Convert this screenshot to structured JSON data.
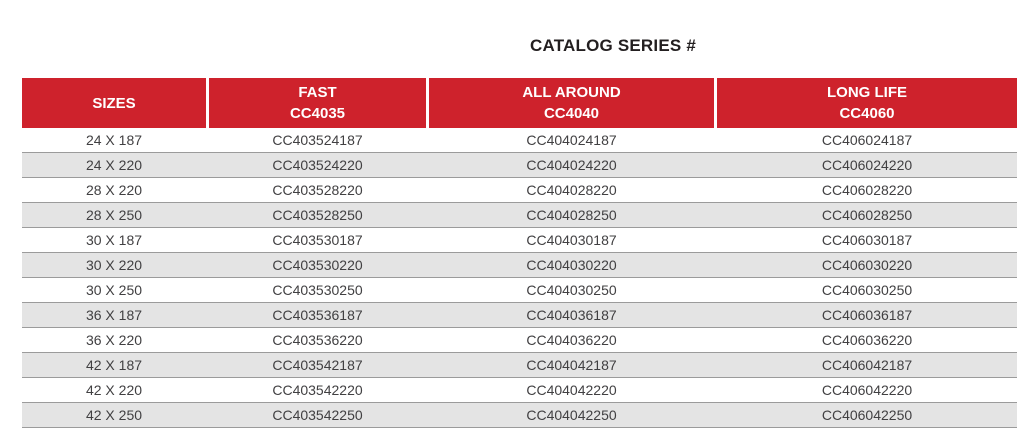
{
  "title": "CATALOG SERIES #",
  "colors": {
    "header_red": "#ce222c",
    "stripe_gray": "#e4e4e4",
    "row_border": "#9b9b9b",
    "title_text": "#231f20",
    "body_text": "#414042",
    "header_text": "#ffffff"
  },
  "table": {
    "columns": [
      {
        "id": "size",
        "label": "SIZES",
        "code": ""
      },
      {
        "id": "fast",
        "label": "FAST",
        "code": "CC4035"
      },
      {
        "id": "all_around",
        "label": "ALL AROUND",
        "code": "CC4040"
      },
      {
        "id": "long_life",
        "label": "LONG LIFE",
        "code": "CC4060"
      }
    ],
    "rows": [
      {
        "size": "24 X 187",
        "fast": "CC403524187",
        "all_around": "CC404024187",
        "long_life": "CC406024187"
      },
      {
        "size": "24 X 220",
        "fast": "CC403524220",
        "all_around": "CC404024220",
        "long_life": "CC406024220"
      },
      {
        "size": "28 X 220",
        "fast": "CC403528220",
        "all_around": "CC404028220",
        "long_life": "CC406028220"
      },
      {
        "size": "28 X 250",
        "fast": "CC403528250",
        "all_around": "CC404028250",
        "long_life": "CC406028250"
      },
      {
        "size": "30 X 187",
        "fast": "CC403530187",
        "all_around": "CC404030187",
        "long_life": "CC406030187"
      },
      {
        "size": "30 X 220",
        "fast": "CC403530220",
        "all_around": "CC404030220",
        "long_life": "CC406030220"
      },
      {
        "size": "30 X 250",
        "fast": "CC403530250",
        "all_around": "CC404030250",
        "long_life": "CC406030250"
      },
      {
        "size": "36 X 187",
        "fast": "CC403536187",
        "all_around": "CC404036187",
        "long_life": "CC406036187"
      },
      {
        "size": "36 X 220",
        "fast": "CC403536220",
        "all_around": "CC404036220",
        "long_life": "CC406036220"
      },
      {
        "size": "42 X 187",
        "fast": "CC403542187",
        "all_around": "CC404042187",
        "long_life": "CC406042187"
      },
      {
        "size": "42 X 220",
        "fast": "CC403542220",
        "all_around": "CC404042220",
        "long_life": "CC406042220"
      },
      {
        "size": "42 X 250",
        "fast": "CC403542250",
        "all_around": "CC404042250",
        "long_life": "CC406042250"
      }
    ]
  }
}
